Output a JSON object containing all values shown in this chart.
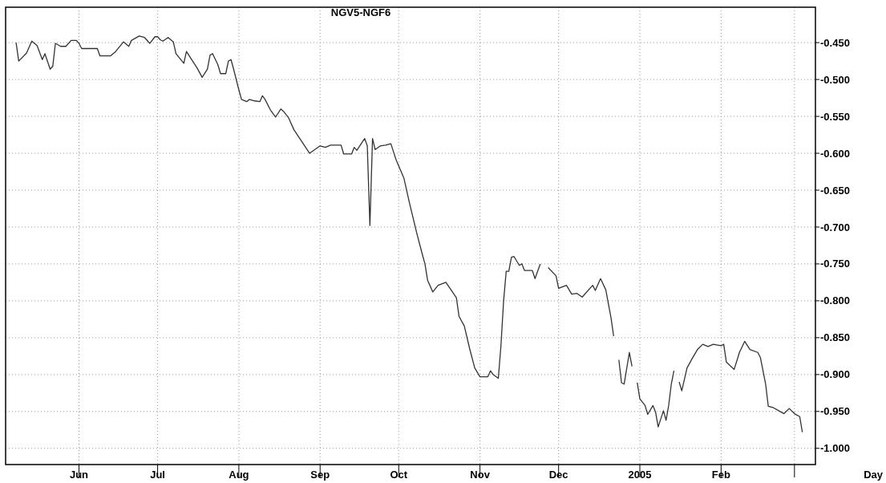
{
  "chart_data": {
    "type": "line",
    "title": "NGV5-NGF6",
    "xlabel": "Day",
    "x": [
      "2004-05-08",
      "2004-05-09",
      "2004-05-12",
      "2004-05-14",
      "2004-05-16",
      "2004-05-18",
      "2004-05-19",
      "2004-05-21",
      "2004-05-22",
      "2004-05-23",
      "2004-05-25",
      "2004-05-27",
      "2004-05-29",
      "2004-05-31",
      "2004-06-01",
      "2004-06-02",
      "2004-06-08",
      "2004-06-09",
      "2004-06-13",
      "2004-06-15",
      "2004-06-18",
      "2004-06-20",
      "2004-06-21",
      "2004-06-24",
      "2004-06-26",
      "2004-06-28",
      "2004-06-30",
      "2004-07-01",
      "2004-07-02",
      "2004-07-03",
      "2004-07-05",
      "2004-07-07",
      "2004-07-08",
      "2004-07-11",
      "2004-07-12",
      "2004-07-14",
      "2004-07-16",
      "2004-07-18",
      "2004-07-20",
      "2004-07-21",
      "2004-07-22",
      "2004-07-24",
      "2004-07-25",
      "2004-07-27",
      "2004-07-28",
      "2004-07-29",
      "2004-07-30",
      "2004-08-01",
      "2004-08-02",
      "2004-08-04",
      "2004-08-05",
      "2004-08-07",
      "2004-08-09",
      "2004-08-10",
      "2004-08-11",
      "2004-08-13",
      "2004-08-15",
      "2004-08-17",
      "2004-08-18",
      "2004-08-20",
      "2004-08-22",
      "2004-08-25",
      "2004-08-28",
      "2004-09-01",
      "2004-09-03",
      "2004-09-05",
      "2004-09-09",
      "2004-09-10",
      "2004-09-13",
      "2004-09-14",
      "2004-09-15",
      "2004-09-18",
      "2004-09-19",
      "2004-09-20",
      "2004-09-21",
      "2004-09-22",
      "2004-09-24",
      "2004-09-26",
      "2004-09-28",
      "2004-09-30",
      "2004-10-03",
      "2004-10-05",
      "2004-10-08",
      "2004-10-10",
      "2004-10-11",
      "2004-10-12",
      "2004-10-14",
      "2004-10-16",
      "2004-10-19",
      "2004-10-23",
      "2004-10-24",
      "2004-10-26",
      "2004-10-28",
      "2004-10-30",
      "2004-11-01",
      "2004-11-04",
      "2004-11-05",
      "2004-11-06",
      "2004-11-08",
      "2004-11-09",
      "2004-11-10",
      "2004-11-11",
      "2004-11-12",
      "2004-11-13",
      "2004-11-14",
      "2004-11-16",
      "2004-11-17",
      "2004-11-18",
      "2004-11-21",
      "2004-11-22",
      "2004-11-24",
      "2004-11-26",
      "2004-11-27",
      "2004-11-30",
      "2004-12-01",
      "2004-12-04",
      "2004-12-06",
      "2004-12-08",
      "2004-12-10",
      "2004-12-14",
      "2004-12-15",
      "2004-12-17",
      "2004-12-19",
      "2004-12-21",
      "2004-12-22",
      "2004-12-23",
      "2004-12-24",
      "2004-12-25",
      "2004-12-26",
      "2004-12-28",
      "2004-12-29",
      "2004-12-30",
      "2004-12-31",
      "2005-01-01",
      "2005-01-03",
      "2005-01-04",
      "2005-01-06",
      "2005-01-07",
      "2005-01-08",
      "2005-01-10",
      "2005-01-11",
      "2005-01-12",
      "2005-01-13",
      "2005-01-14",
      "2005-01-15",
      "2005-01-16",
      "2005-01-17",
      "2005-01-19",
      "2005-01-21",
      "2005-01-23",
      "2005-01-25",
      "2005-01-27",
      "2005-01-29",
      "2005-02-01",
      "2005-02-02",
      "2005-02-03",
      "2005-02-06",
      "2005-02-08",
      "2005-02-10",
      "2005-02-12",
      "2005-02-15",
      "2005-02-16",
      "2005-02-18",
      "2005-02-19",
      "2005-02-21",
      "2005-02-25",
      "2005-02-27",
      "2005-03-01",
      "2005-03-03",
      "2005-03-04"
    ],
    "series": [
      {
        "color": "#333333",
        "values": [
          -0.45,
          -0.475,
          -0.464,
          -0.448,
          -0.454,
          -0.473,
          -0.465,
          -0.486,
          -0.482,
          -0.451,
          -0.455,
          -0.455,
          -0.447,
          -0.447,
          -0.451,
          -0.458,
          -0.458,
          -0.468,
          -0.468,
          -0.462,
          -0.449,
          -0.455,
          -0.447,
          -0.441,
          -0.443,
          -0.451,
          -0.442,
          -0.442,
          -0.446,
          -0.448,
          -0.443,
          -0.449,
          -0.465,
          -0.478,
          -0.462,
          -0.473,
          -0.484,
          -0.497,
          -0.486,
          -0.467,
          -0.465,
          -0.48,
          -0.492,
          -0.492,
          -0.475,
          -0.473,
          -0.486,
          -0.514,
          -0.527,
          -0.53,
          -0.527,
          -0.529,
          -0.53,
          -0.522,
          -0.527,
          -0.541,
          -0.551,
          -0.54,
          -0.543,
          -0.552,
          -0.568,
          -0.584,
          -0.6,
          -0.59,
          -0.592,
          -0.589,
          -0.589,
          -0.601,
          -0.601,
          -0.592,
          -0.596,
          -0.58,
          -0.59,
          -0.698,
          -0.58,
          -0.595,
          -0.59,
          -0.589,
          -0.587,
          -0.609,
          -0.634,
          -0.666,
          -0.71,
          -0.737,
          -0.75,
          -0.772,
          -0.788,
          -0.779,
          -0.775,
          -0.796,
          -0.821,
          -0.834,
          -0.864,
          -0.891,
          -0.903,
          -0.903,
          -0.895,
          -0.9,
          -0.905,
          -0.861,
          -0.801,
          -0.76,
          -0.76,
          -0.741,
          -0.74,
          -0.752,
          -0.75,
          -0.759,
          -0.759,
          -0.77,
          -0.75,
          null,
          -0.755,
          -0.766,
          -0.783,
          -0.779,
          -0.791,
          -0.79,
          -0.795,
          -0.779,
          -0.786,
          -0.77,
          -0.785,
          -0.823,
          -0.848,
          null,
          -0.88,
          -0.911,
          -0.913,
          -0.87,
          -0.889,
          null,
          -0.911,
          -0.933,
          -0.942,
          -0.954,
          -0.942,
          -0.951,
          -0.971,
          -0.949,
          -0.962,
          -0.942,
          -0.913,
          -0.895,
          null,
          -0.91,
          -0.922,
          -0.891,
          -0.878,
          -0.866,
          -0.859,
          -0.862,
          -0.859,
          -0.861,
          -0.859,
          -0.883,
          -0.893,
          -0.87,
          -0.855,
          -0.866,
          -0.87,
          -0.877,
          -0.913,
          -0.943,
          -0.945,
          -0.953,
          -0.946,
          -0.953,
          -0.957,
          -0.978
        ]
      }
    ],
    "xlim": [
      "2004-05-04",
      "2005-03-09"
    ],
    "xticks": [
      {
        "value": "2004-06-01",
        "label": "Jun"
      },
      {
        "value": "2004-07-01",
        "label": "Jul"
      },
      {
        "value": "2004-08-01",
        "label": "Aug"
      },
      {
        "value": "2004-09-01",
        "label": "Sep"
      },
      {
        "value": "2004-10-01",
        "label": "Oct"
      },
      {
        "value": "2004-11-01",
        "label": "Nov"
      },
      {
        "value": "2004-12-01",
        "label": "Dec"
      },
      {
        "value": "2005-01-01",
        "label": "2005"
      },
      {
        "value": "2005-02-01",
        "label": "Feb"
      },
      {
        "value": "2005-03-01",
        "label": null
      }
    ],
    "ylim": [
      -1.022,
      -0.402
    ],
    "yticks": [
      {
        "value": -0.45,
        "label": "-0.450"
      },
      {
        "value": -0.5,
        "label": "-0.500"
      },
      {
        "value": -0.55,
        "label": "-0.550"
      },
      {
        "value": -0.6,
        "label": "-0.600"
      },
      {
        "value": -0.65,
        "label": "-0.650"
      },
      {
        "value": -0.7,
        "label": "-0.700"
      },
      {
        "value": -0.75,
        "label": "-0.750"
      },
      {
        "value": -0.8,
        "label": "-0.800"
      },
      {
        "value": -0.85,
        "label": "-0.850"
      },
      {
        "value": -0.9,
        "label": "-0.900"
      },
      {
        "value": -0.95,
        "label": "-0.950"
      },
      {
        "value": -1.0,
        "label": "-1.000"
      }
    ],
    "grid": true,
    "line_style": "solid",
    "marker": "none"
  }
}
